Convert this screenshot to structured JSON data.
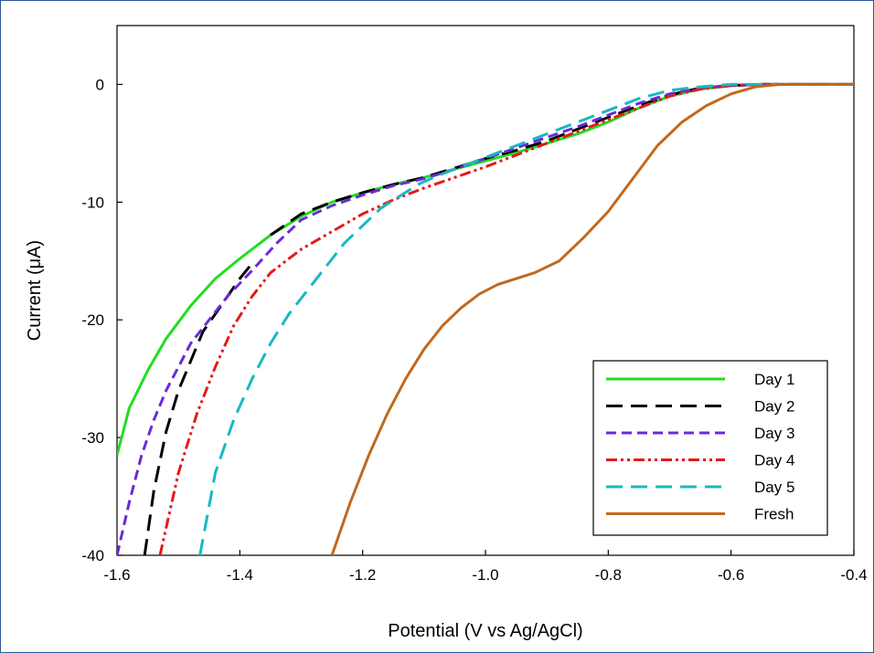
{
  "chart_data": {
    "type": "line",
    "title": "",
    "xlabel": "Potential (V vs Ag/AgCl)",
    "ylabel": "Current (μA)",
    "xlim": [
      -1.6,
      -0.4
    ],
    "ylim": [
      -40,
      5
    ],
    "xticks": [
      -1.6,
      -1.4,
      -1.2,
      -1.0,
      -0.8,
      -0.6,
      -0.4
    ],
    "xtick_labels": [
      "-1.6",
      "-1.4",
      "-1.2",
      "-1.0",
      "-0.8",
      "-0.6",
      "-0.4"
    ],
    "yticks": [
      -40,
      -30,
      -20,
      -10,
      0
    ],
    "ytick_labels": [
      "-40",
      "-30",
      "-20",
      "-10",
      "0"
    ],
    "grid": false,
    "legend_position": "bottom-right",
    "series": [
      {
        "name": "Day 1",
        "color": "#22dd22",
        "dash": "solid",
        "x": [
          -1.6,
          -1.58,
          -1.55,
          -1.52,
          -1.48,
          -1.44,
          -1.4,
          -1.35,
          -1.3,
          -1.25,
          -1.2,
          -1.15,
          -1.1,
          -1.05,
          -1.0,
          -0.95,
          -0.9,
          -0.85,
          -0.8,
          -0.75,
          -0.7,
          -0.65,
          -0.6,
          -0.55,
          -0.5,
          -0.45,
          -0.4
        ],
        "y": [
          -31.5,
          -27.5,
          -24.3,
          -21.6,
          -18.8,
          -16.5,
          -14.8,
          -12.8,
          -11.2,
          -10.0,
          -9.2,
          -8.5,
          -7.9,
          -7.2,
          -6.5,
          -5.8,
          -5.0,
          -4.2,
          -3.2,
          -2.0,
          -1.0,
          -0.4,
          -0.1,
          0,
          0,
          0,
          0
        ]
      },
      {
        "name": "Day 2",
        "color": "#000000",
        "dash": "long-dash",
        "x": [
          -1.555,
          -1.54,
          -1.52,
          -1.5,
          -1.48,
          -1.46,
          -1.44,
          -1.42,
          -1.4,
          -1.38
        ],
        "y": [
          -40,
          -34.5,
          -29.5,
          -26.0,
          -23.5,
          -21.0,
          -19.5,
          -18.0,
          -16.5,
          -15.2
        ]
      },
      {
        "name": "Day 2 (upper)",
        "color": "#000000",
        "dash": "long-dash",
        "x": [
          -1.35,
          -1.3,
          -1.25,
          -1.2,
          -1.15,
          -1.1,
          -1.05,
          -1.0,
          -0.95,
          -0.9,
          -0.85,
          -0.8,
          -0.75,
          -0.7,
          -0.65,
          -0.6,
          -0.55,
          -0.5,
          -0.45,
          -0.4
        ],
        "y": [
          -12.8,
          -11.0,
          -10.0,
          -9.2,
          -8.5,
          -7.9,
          -7.1,
          -6.3,
          -5.6,
          -4.8,
          -3.8,
          -2.8,
          -1.8,
          -0.9,
          -0.3,
          -0.1,
          0,
          0,
          0,
          0
        ]
      },
      {
        "name": "Day 3",
        "color": "#6a2bd8",
        "dash": "dash",
        "x": [
          -1.6,
          -1.58,
          -1.56,
          -1.54,
          -1.52,
          -1.5,
          -1.48,
          -1.45,
          -1.42,
          -1.38,
          -1.34,
          -1.3,
          -1.25,
          -1.2,
          -1.15,
          -1.1,
          -1.05,
          -1.0,
          -0.95,
          -0.9,
          -0.85,
          -0.8,
          -0.75,
          -0.7,
          -0.65,
          -0.6,
          -0.55,
          -0.5,
          -0.45,
          -0.4
        ],
        "y": [
          -40,
          -35.5,
          -31.5,
          -28.5,
          -26.0,
          -24.0,
          -22.0,
          -20.0,
          -18.0,
          -15.8,
          -13.5,
          -11.5,
          -10.3,
          -9.4,
          -8.6,
          -8.0,
          -7.2,
          -6.3,
          -5.4,
          -4.5,
          -3.6,
          -2.6,
          -1.6,
          -0.8,
          -0.3,
          -0.1,
          0,
          0,
          0,
          0
        ]
      },
      {
        "name": "Day 4",
        "color": "#e41a1a",
        "dash": "dash-dot-dot",
        "x": [
          -1.53,
          -1.5,
          -1.47,
          -1.44,
          -1.41,
          -1.38,
          -1.35,
          -1.3,
          -1.25,
          -1.2,
          -1.15,
          -1.1,
          -1.05,
          -1.0,
          -0.95,
          -0.9,
          -0.85,
          -0.8,
          -0.75,
          -0.7,
          -0.65,
          -0.6,
          -0.55,
          -0.5,
          -0.45,
          -0.4
        ],
        "y": [
          -40,
          -33.0,
          -28.0,
          -24.0,
          -20.5,
          -18.0,
          -16.0,
          -14.0,
          -12.5,
          -11.0,
          -9.8,
          -8.8,
          -7.9,
          -7.0,
          -6.0,
          -5.0,
          -4.0,
          -3.0,
          -2.0,
          -1.0,
          -0.4,
          -0.1,
          0,
          0,
          0,
          0
        ]
      },
      {
        "name": "Day 5",
        "color": "#1ab8c0",
        "dash": "long-dash",
        "x": [
          -1.465,
          -1.44,
          -1.41,
          -1.38,
          -1.35,
          -1.32,
          -1.29,
          -1.26,
          -1.23,
          -1.2,
          -1.17,
          -1.14,
          -1.11,
          -1.08,
          -1.05,
          -1.0,
          -0.95,
          -0.9,
          -0.85,
          -0.8,
          -0.75,
          -0.7,
          -0.65,
          -0.6,
          -0.55,
          -0.5,
          -0.45,
          -0.4
        ],
        "y": [
          -40,
          -33.0,
          -28.5,
          -25.0,
          -22.0,
          -19.5,
          -17.5,
          -15.5,
          -13.5,
          -12.0,
          -10.5,
          -9.5,
          -8.5,
          -7.8,
          -7.2,
          -6.2,
          -5.2,
          -4.2,
          -3.2,
          -2.2,
          -1.2,
          -0.5,
          -0.2,
          0,
          0,
          0,
          0,
          0
        ]
      },
      {
        "name": "Fresh",
        "color": "#c0691e",
        "dash": "solid",
        "x": [
          -1.25,
          -1.22,
          -1.19,
          -1.16,
          -1.13,
          -1.1,
          -1.07,
          -1.04,
          -1.01,
          -0.98,
          -0.95,
          -0.92,
          -0.88,
          -0.84,
          -0.8,
          -0.76,
          -0.72,
          -0.68,
          -0.64,
          -0.6,
          -0.56,
          -0.52,
          -0.48,
          -0.44,
          -0.4
        ],
        "y": [
          -40,
          -35.5,
          -31.5,
          -28.0,
          -25.0,
          -22.5,
          -20.5,
          -19.0,
          -17.8,
          -17.0,
          -16.5,
          -16.0,
          -15.0,
          -13.0,
          -10.8,
          -8.0,
          -5.2,
          -3.2,
          -1.8,
          -0.8,
          -0.2,
          0,
          0,
          0,
          0
        ]
      }
    ],
    "legend": [
      {
        "label": "Day 1",
        "color": "#22dd22",
        "dash": "solid"
      },
      {
        "label": "Day 2",
        "color": "#000000",
        "dash": "long-dash"
      },
      {
        "label": "Day 3",
        "color": "#6a2bd8",
        "dash": "dash"
      },
      {
        "label": "Day 4",
        "color": "#e41a1a",
        "dash": "dash-dot-dot"
      },
      {
        "label": "Day 5",
        "color": "#1ab8c0",
        "dash": "long-dash"
      },
      {
        "label": "Fresh",
        "color": "#c0691e",
        "dash": "solid"
      }
    ]
  }
}
